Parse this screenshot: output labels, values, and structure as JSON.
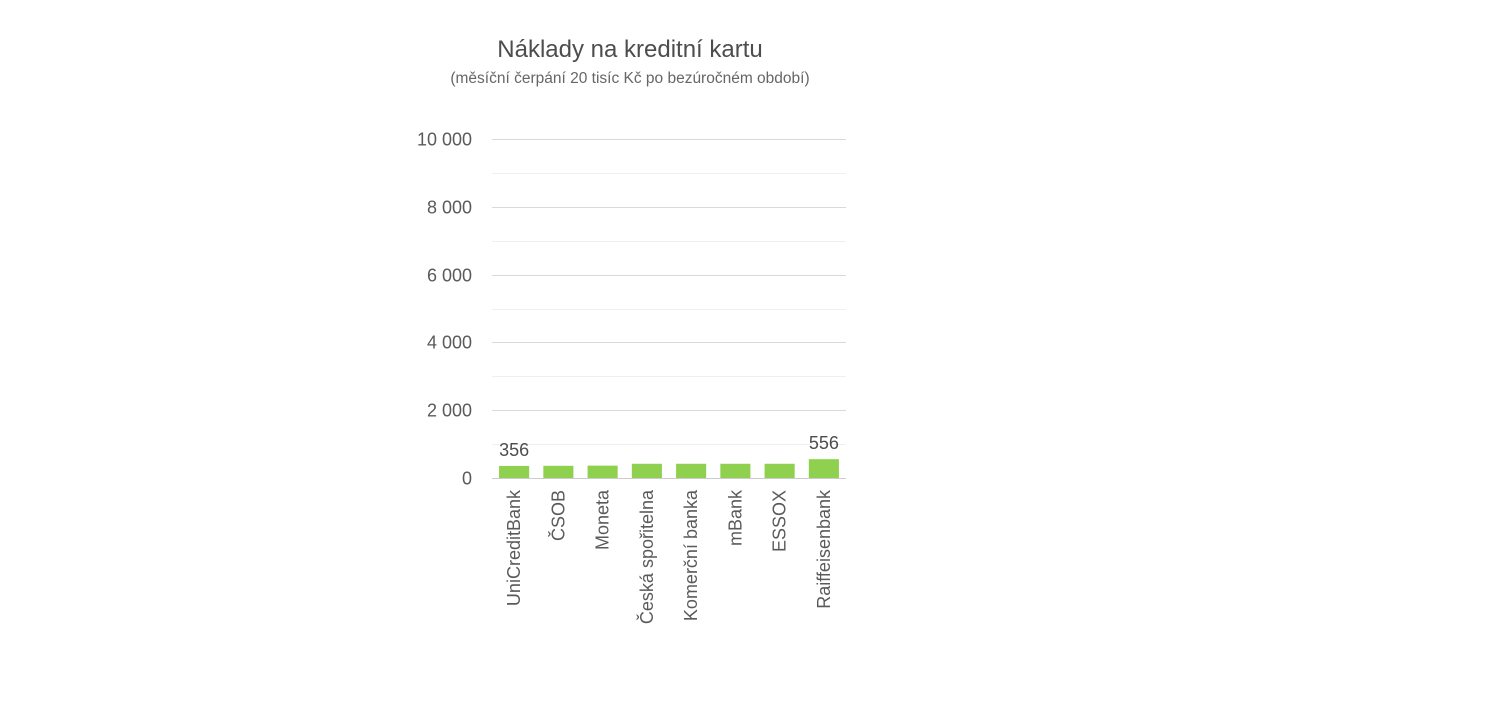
{
  "chart_data": {
    "type": "bar",
    "title": "Náklady na kreditní kartu",
    "subtitle": "(měsíční čerpání 20 tisíc Kč po bezúročném období)",
    "categories": [
      "UniCreditBank",
      "ČSOB",
      "Moneta",
      "Česká spořitelna",
      "Komerční banka",
      "mBank",
      "ESSOX",
      "Raiffeisenbank"
    ],
    "values": [
      356,
      360,
      365,
      420,
      420,
      420,
      420,
      556
    ],
    "data_labels": [
      {
        "index": 0,
        "text": "356"
      },
      {
        "index": 7,
        "text": "556"
      }
    ],
    "ylim": [
      0,
      10000
    ],
    "yticks": [
      {
        "value": 0,
        "label": "0"
      },
      {
        "value": 2000,
        "label": "2 000"
      },
      {
        "value": 4000,
        "label": "4 000"
      },
      {
        "value": 6000,
        "label": "6 000"
      },
      {
        "value": 8000,
        "label": "8 000"
      },
      {
        "value": 10000,
        "label": "10 000"
      }
    ],
    "minor_grid_step": 1000,
    "grid": true,
    "xlabel": "",
    "ylabel": "",
    "colors": {
      "bar": "#8fd14f",
      "grid_major": "#d9d9d9",
      "grid_minor": "#efefef",
      "axis": "#cccccc"
    }
  }
}
